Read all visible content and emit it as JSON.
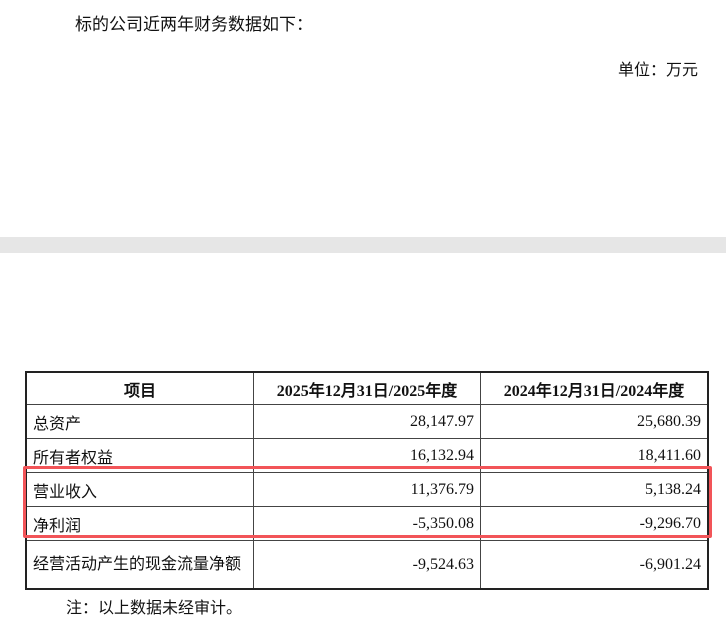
{
  "intro": "标的公司近两年财务数据如下：",
  "unit": "单位：万元",
  "table": {
    "headers": [
      "项目",
      "2025年12月31日/2025年度",
      "2024年12月31日/2024年度"
    ],
    "rows": [
      [
        "总资产",
        "28,147.97",
        "25,680.39"
      ],
      [
        "所有者权益",
        "16,132.94",
        "18,411.60"
      ],
      [
        "营业收入",
        "11,376.79",
        "5,138.24"
      ],
      [
        "净利润",
        "-5,350.08",
        "-9,296.70"
      ],
      [
        "经营活动产生的现金流量净额",
        "-9,524.63",
        "-6,901.24"
      ]
    ]
  },
  "highlight_color": "#f25458",
  "note": "注：以上数据未经审计。"
}
